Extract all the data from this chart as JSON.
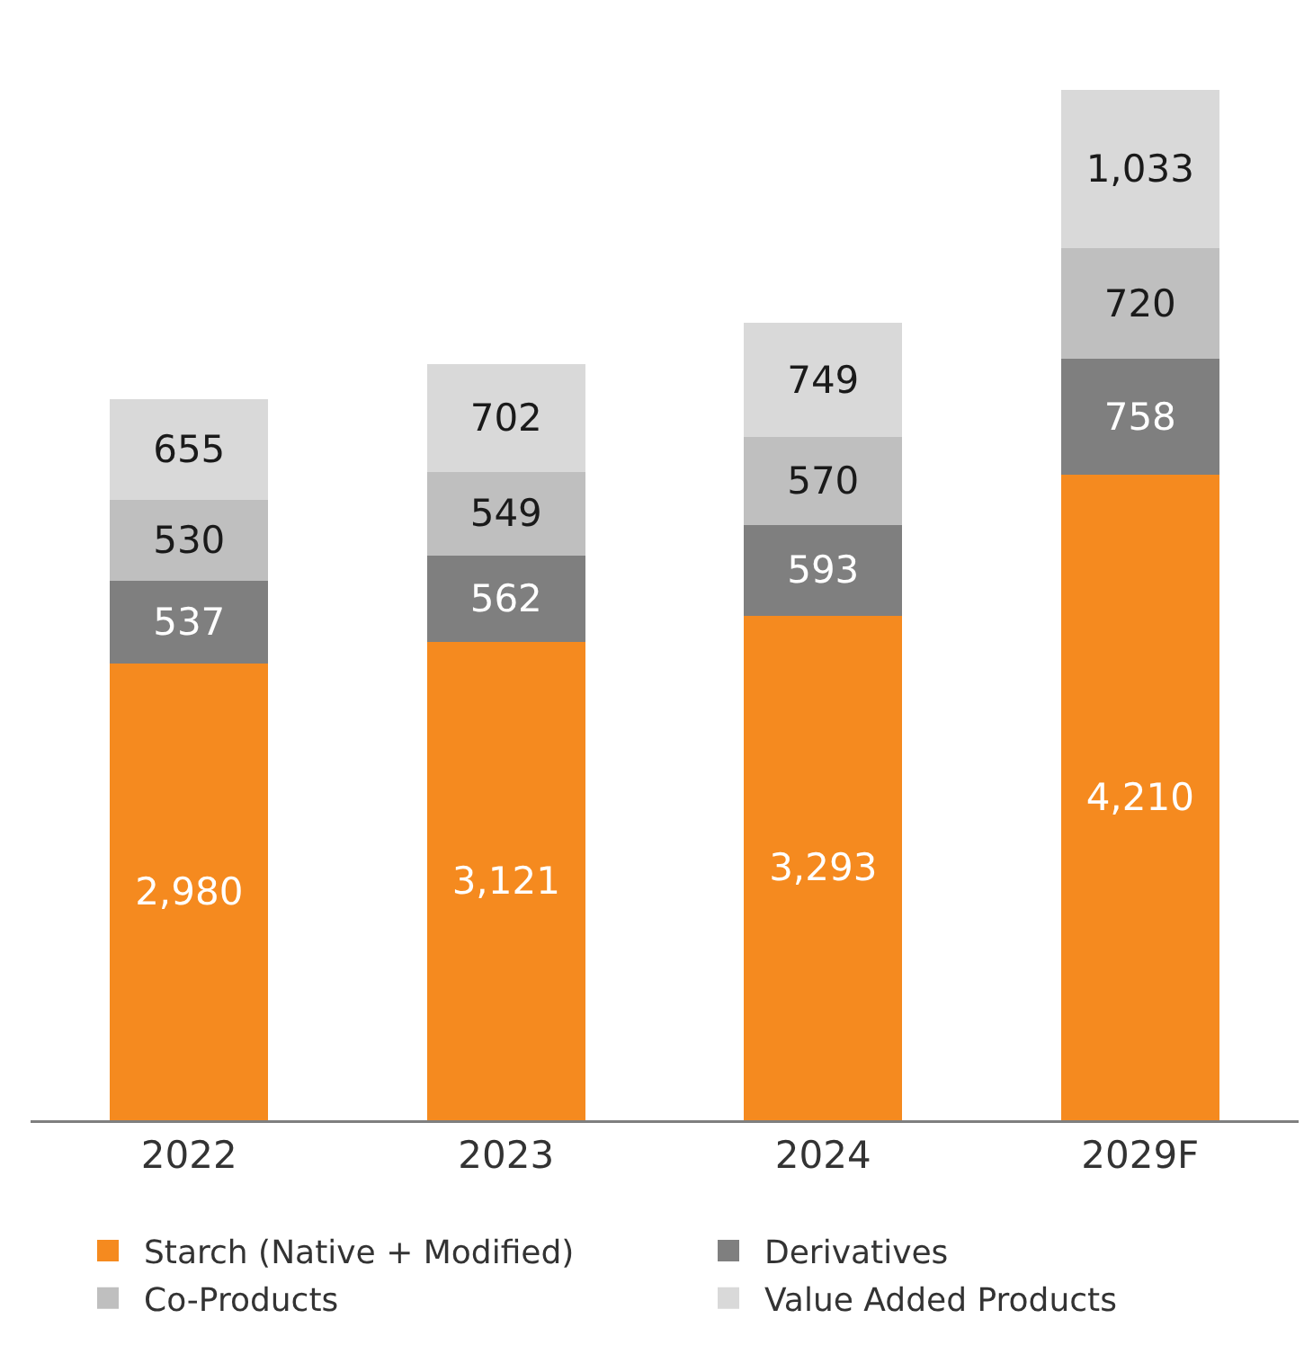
{
  "chart_data": {
    "type": "bar",
    "stacked": true,
    "legend": "bottom",
    "categories": [
      "2022",
      "2023",
      "2024",
      "2029F"
    ],
    "series": [
      {
        "name": "Starch (Native + Modified)",
        "color": "#f58a1f",
        "values": [
          2980,
          3121,
          3293,
          4210
        ],
        "value_labels": [
          "2,980",
          "3,121",
          "3,293",
          "4,210"
        ]
      },
      {
        "name": "Derivatives",
        "color": "#7f7f7f",
        "values": [
          537,
          562,
          593,
          758
        ],
        "value_labels": [
          "537",
          "562",
          "593",
          "758"
        ]
      },
      {
        "name": "Co-Products",
        "color": "#bfbfbf",
        "values": [
          530,
          549,
          570,
          720
        ],
        "value_labels": [
          "530",
          "549",
          "570",
          "720"
        ]
      },
      {
        "name": "Value Added Products",
        "color": "#d9d9d9",
        "values": [
          655,
          702,
          749,
          1033
        ],
        "value_labels": [
          "655",
          "702",
          "749",
          "1,033"
        ]
      }
    ]
  }
}
